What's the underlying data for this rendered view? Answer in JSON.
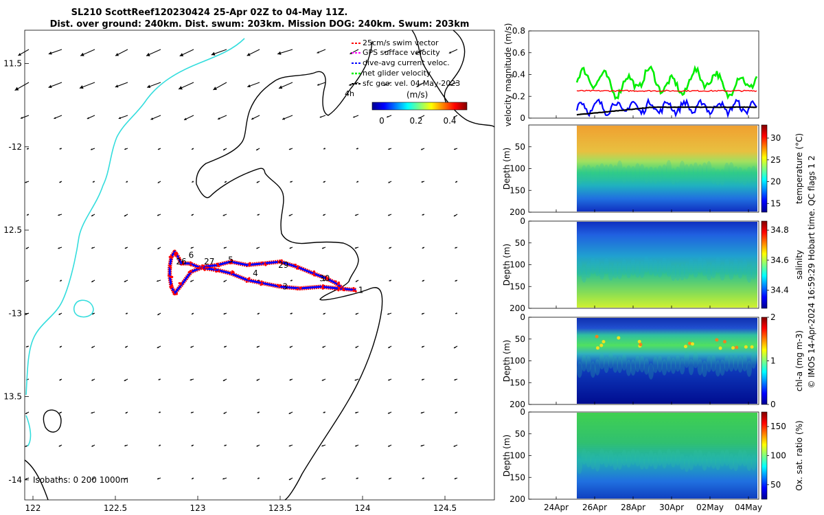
{
  "title": {
    "line1": "SL210 ScottReef120230424 25-Apr 02Z to 04-May 11Z.",
    "line2": "Dist. over ground: 240km. Dist. swum: 203km. Mission DOG: 240km. Swum: 203km"
  },
  "credit": "© IMOS 14-Apr-2024 16:59:29 Hobart time. QC flags 1  2",
  "colors": {
    "swim": "#ff0000",
    "gps": "#ff00ff",
    "dive_avg": "#0000ff",
    "net": "#00ee00",
    "sfc": "#000000",
    "coast": "#33dddd",
    "isobath": "#000000"
  },
  "chart_data": [
    {
      "type": "scatter",
      "name": "track-map",
      "xlim": [
        121.95,
        124.8
      ],
      "ylim": [
        -14.12,
        -11.3
      ],
      "x_ticks": [
        122,
        122.5,
        123,
        123.5,
        124,
        124.5
      ],
      "x_tick_labels": [
        "122",
        "122.5",
        "123",
        "123.5",
        "124",
        "124.5"
      ],
      "y_ticks": [
        -11.5,
        -12,
        -12.5,
        -13,
        -13.5,
        -14
      ],
      "y_tick_labels": [
        "11.5",
        "-12",
        "12.5",
        "-13",
        "13.5",
        "-14"
      ],
      "legend": {
        "placement": "top-right",
        "entries": [
          {
            "label": "25cm/s swim vector",
            "color": "#ff0000"
          },
          {
            "label": "GPS surface velocity",
            "color": "#ff00ff"
          },
          {
            "label": "dive-avg current veloc.",
            "color": "#0000ff"
          },
          {
            "label": "net glider velocity",
            "color": "#00ee00"
          },
          {
            "label": "sfc geo. vel. 04-May-2023",
            "color": "#000000"
          }
        ],
        "extra_label": "4h"
      },
      "colorbar": {
        "label": "(m/s)",
        "ticks": [
          0,
          0.2,
          0.4
        ],
        "tick_labels": [
          "0",
          "0.2",
          "0.4"
        ],
        "range": [
          -0.05,
          0.5
        ]
      },
      "isobath_label": "Isobaths: 0   200  1000m",
      "track": {
        "lon": [
          123.96,
          123.85,
          123.75,
          123.62,
          123.5,
          123.4,
          123.3,
          123.2,
          123.12,
          123.05,
          123.0,
          122.95,
          122.9,
          122.88,
          122.86,
          122.84,
          122.83,
          122.83,
          122.84,
          122.86,
          122.9,
          122.96,
          123.04,
          123.12,
          123.2,
          123.3,
          123.4,
          123.5,
          123.6,
          123.7,
          123.78,
          123.84,
          123.88
        ],
        "lat": [
          -12.86,
          -12.85,
          -12.84,
          -12.85,
          -12.84,
          -12.82,
          -12.8,
          -12.76,
          -12.74,
          -12.73,
          -12.72,
          -12.7,
          -12.7,
          -12.66,
          -12.63,
          -12.66,
          -12.72,
          -12.78,
          -12.84,
          -12.88,
          -12.83,
          -12.75,
          -12.72,
          -12.71,
          -12.69,
          -12.71,
          -12.7,
          -12.69,
          -12.72,
          -12.76,
          -12.79,
          -12.82,
          -12.85
        ]
      },
      "day_labels": [
        {
          "text": "1",
          "lon": 123.99,
          "lat": -12.86
        },
        {
          "text": "30",
          "lon": 123.77,
          "lat": -12.79
        },
        {
          "text": "3",
          "lon": 123.53,
          "lat": -12.84
        },
        {
          "text": "4",
          "lon": 123.35,
          "lat": -12.76
        },
        {
          "text": "29",
          "lon": 123.52,
          "lat": -12.71
        },
        {
          "text": "5",
          "lon": 123.2,
          "lat": -12.68
        },
        {
          "text": "27",
          "lon": 123.07,
          "lat": -12.69
        },
        {
          "text": "26",
          "lon": 122.9,
          "lat": -12.69
        },
        {
          "text": "6",
          "lon": 122.96,
          "lat": -12.65
        }
      ]
    },
    {
      "type": "line",
      "name": "velocity",
      "ylabel": "velocity magnitude (m/s)",
      "ylim": [
        0,
        0.8
      ],
      "y_ticks": [
        0,
        0.2,
        0.4,
        0.6,
        0.8
      ],
      "y_tick_labels": [
        "0",
        "0.2",
        "0.4",
        "0.6",
        "0.8"
      ],
      "x_ticks": [
        "24Apr",
        "26Apr",
        "28Apr",
        "30Apr",
        "02May",
        "04May"
      ],
      "series_colors": [
        "#00ee00",
        "#0000ff",
        "#ff0000",
        "#000000"
      ]
    },
    {
      "type": "heatmap",
      "name": "temperature",
      "ylabel": "Depth (m)",
      "cbar_label": "temperature (°C)",
      "ylim": [
        0,
        200
      ],
      "y_tick_labels": [
        "50",
        "100",
        "150",
        "200"
      ],
      "cbar_ticks": [
        15,
        20,
        25,
        30
      ],
      "cbar_tick_labels": [
        "15",
        "20",
        "25",
        "30"
      ],
      "cbar_range": [
        13,
        33
      ]
    },
    {
      "type": "heatmap",
      "name": "salinity",
      "ylabel": "Depth (m)",
      "cbar_label": "salinity",
      "ylim": [
        0,
        200
      ],
      "y_tick_labels": [
        "0",
        "50",
        "100",
        "150",
        "200"
      ],
      "cbar_ticks": [
        34.4,
        34.6,
        34.8
      ],
      "cbar_tick_labels": [
        "34.4",
        "34.6",
        "34.8"
      ],
      "cbar_range": [
        34.28,
        34.86
      ]
    },
    {
      "type": "heatmap",
      "name": "chla",
      "ylabel": "Depth (m)",
      "cbar_label": "chl-a (mg m-3)",
      "ylim": [
        0,
        200
      ],
      "y_tick_labels": [
        "0",
        "50",
        "100",
        "150",
        "200"
      ],
      "cbar_ticks": [
        0,
        1,
        2
      ],
      "cbar_tick_labels": [
        "0",
        "1",
        "2"
      ],
      "cbar_range": [
        0,
        2
      ]
    },
    {
      "type": "heatmap",
      "name": "oxygen",
      "ylabel": "Depth (m)",
      "cbar_label": "Ox. sat. ratio (%)",
      "ylim": [
        0,
        200
      ],
      "y_tick_labels": [
        "0",
        "50",
        "100",
        "150",
        "200"
      ],
      "cbar_ticks": [
        50,
        100,
        150
      ],
      "cbar_tick_labels": [
        "50",
        "100",
        "150"
      ],
      "cbar_range": [
        25,
        175
      ],
      "x_ticks": [
        "24Apr",
        "26Apr",
        "28Apr",
        "30Apr",
        "02May",
        "04May"
      ]
    }
  ]
}
